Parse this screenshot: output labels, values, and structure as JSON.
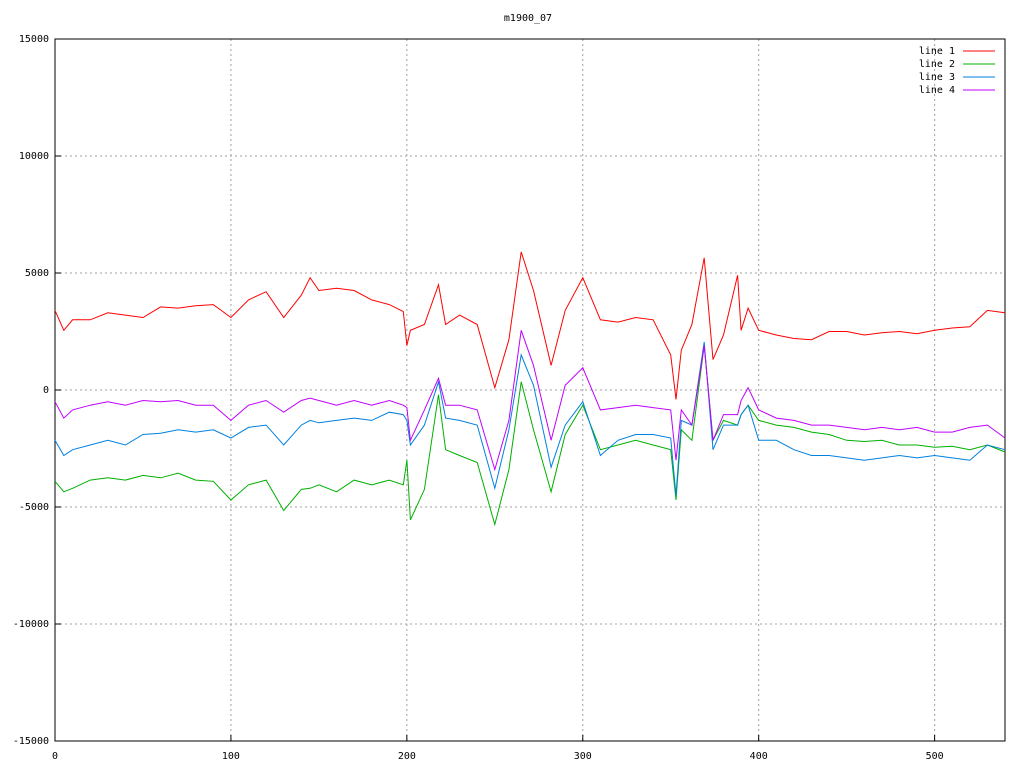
{
  "chart_data": {
    "type": "line",
    "title": "m1900_07",
    "x": [
      0,
      5,
      10,
      20,
      30,
      40,
      50,
      60,
      70,
      80,
      90,
      100,
      110,
      120,
      130,
      140,
      145,
      150,
      160,
      170,
      180,
      190,
      198,
      200,
      202,
      210,
      218,
      222,
      230,
      240,
      250,
      258,
      265,
      272,
      282,
      290,
      300,
      310,
      320,
      330,
      340,
      350,
      353,
      356,
      362,
      369,
      374,
      380,
      388,
      390,
      394,
      400,
      410,
      420,
      430,
      440,
      450,
      460,
      470,
      480,
      490,
      500,
      510,
      520,
      530,
      540
    ],
    "series": [
      {
        "name": "line 1",
        "color": "#ff0000",
        "values": [
          3400,
          2550,
          3000,
          3000,
          3300,
          3200,
          3100,
          3550,
          3500,
          3600,
          3650,
          3100,
          3850,
          4200,
          3100,
          4050,
          4800,
          4250,
          4350,
          4250,
          3850,
          3650,
          3350,
          1900,
          2550,
          2800,
          4500,
          2800,
          3200,
          2800,
          100,
          2150,
          5900,
          4250,
          1050,
          3400,
          4800,
          3000,
          2900,
          3100,
          3000,
          1500,
          -400,
          1700,
          2800,
          5650,
          1300,
          2350,
          4900,
          2550,
          3500,
          2550,
          2350,
          2200,
          2150,
          2500,
          2500,
          2350,
          2450,
          2500,
          2400,
          2550,
          2650,
          2700,
          3400,
          3300
        ]
      },
      {
        "name": "line 2",
        "color": "#00b000",
        "values": [
          -3900,
          -4350,
          -4200,
          -3850,
          -3750,
          -3850,
          -3650,
          -3750,
          -3550,
          -3850,
          -3900,
          -4700,
          -4050,
          -3850,
          -5150,
          -4250,
          -4200,
          -4050,
          -4350,
          -3850,
          -4050,
          -3850,
          -4050,
          -3000,
          -5550,
          -4250,
          -200,
          -2550,
          -2800,
          -3100,
          -5750,
          -3400,
          350,
          -1700,
          -4350,
          -1900,
          -650,
          -2550,
          -2350,
          -2150,
          -2350,
          -2550,
          -4700,
          -1700,
          -2150,
          1900,
          -2150,
          -1300,
          -1500,
          -1050,
          -650,
          -1300,
          -1500,
          -1600,
          -1800,
          -1900,
          -2150,
          -2200,
          -2150,
          -2350,
          -2350,
          -2450,
          -2400,
          -2550,
          -2350,
          -2650
        ]
      },
      {
        "name": "line 3",
        "color": "#0080e0",
        "values": [
          -2150,
          -2800,
          -2550,
          -2350,
          -2150,
          -2350,
          -1900,
          -1850,
          -1700,
          -1800,
          -1700,
          -2050,
          -1600,
          -1500,
          -2350,
          -1500,
          -1300,
          -1400,
          -1300,
          -1200,
          -1300,
          -950,
          -1050,
          -1300,
          -2350,
          -1500,
          350,
          -1200,
          -1300,
          -1500,
          -4200,
          -1700,
          1500,
          200,
          -3300,
          -1500,
          -500,
          -2800,
          -2150,
          -1900,
          -1900,
          -2050,
          -4500,
          -1300,
          -1500,
          2050,
          -2550,
          -1500,
          -1500,
          -1050,
          -650,
          -2150,
          -2150,
          -2550,
          -2800,
          -2800,
          -2900,
          -3000,
          -2900,
          -2800,
          -2900,
          -2800,
          -2900,
          -3000,
          -2350,
          -2550
        ]
      },
      {
        "name": "line 4",
        "color": "#c000ff",
        "values": [
          -500,
          -1200,
          -850,
          -650,
          -500,
          -650,
          -450,
          -500,
          -450,
          -650,
          -650,
          -1300,
          -650,
          -450,
          -950,
          -450,
          -350,
          -450,
          -650,
          -450,
          -650,
          -450,
          -650,
          -750,
          -2150,
          -850,
          500,
          -650,
          -650,
          -850,
          -3400,
          -1300,
          2550,
          1050,
          -2150,
          200,
          950,
          -850,
          -750,
          -650,
          -750,
          -850,
          -3000,
          -850,
          -1500,
          1900,
          -2150,
          -1050,
          -1050,
          -450,
          100,
          -850,
          -1200,
          -1300,
          -1500,
          -1500,
          -1600,
          -1700,
          -1600,
          -1700,
          -1600,
          -1800,
          -1800,
          -1600,
          -1500,
          -2050
        ]
      }
    ],
    "xlim": [
      0,
      540
    ],
    "xticks": [
      0,
      100,
      200,
      300,
      400,
      500
    ],
    "ylim": [
      -15000,
      15000
    ],
    "yticks": [
      -15000,
      -10000,
      -5000,
      0,
      5000,
      10000,
      15000
    ],
    "grid": true,
    "legend": "top-right"
  }
}
